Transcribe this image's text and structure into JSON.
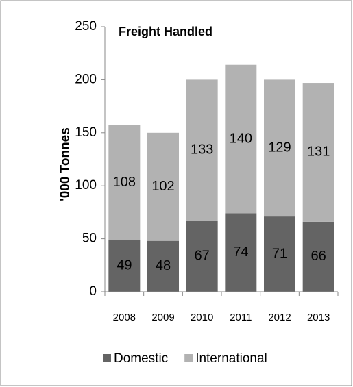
{
  "chart_data": {
    "type": "stacked-bar",
    "title": "Freight Handled",
    "y_label": "'000 Tonnes",
    "categories": [
      "2008",
      "2009",
      "2010",
      "2011",
      "2012",
      "2013"
    ],
    "series": [
      {
        "name": "Domestic",
        "color": "#646464",
        "values": [
          49,
          48,
          67,
          74,
          71,
          66
        ]
      },
      {
        "name": "International",
        "color": "#b2b2b2",
        "values": [
          108,
          102,
          133,
          140,
          129,
          131
        ]
      }
    ],
    "ylim": [
      0,
      250
    ],
    "yticks": [
      0,
      50,
      100,
      150,
      200,
      250
    ],
    "grid": false,
    "legend": "bottom"
  }
}
